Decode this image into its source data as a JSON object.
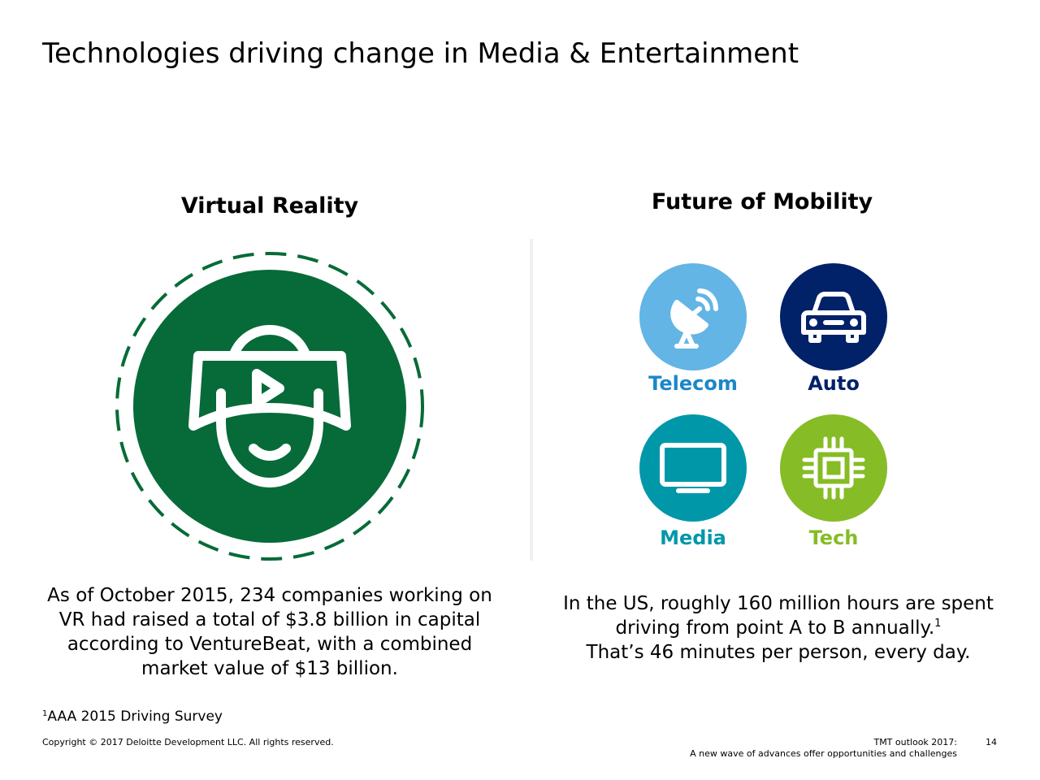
{
  "slide": {
    "title": "Technologies driving change in Media & Entertainment"
  },
  "vr": {
    "heading": "Virtual Reality",
    "icon": "vr-headset-icon",
    "color": "#066B38",
    "body": "As of October 2015, 234 companies working on VR had raised a total of $3.8 billion in capital according to VentureBeat, with a combined market value of $13 billion."
  },
  "mobility": {
    "heading": "Future of Mobility",
    "tiles": [
      {
        "label": "Telecom",
        "icon": "satellite-dish-icon",
        "circle_color": "#62B5E5",
        "label_color": "#1B87C9"
      },
      {
        "label": "Auto",
        "icon": "car-icon",
        "circle_color": "#012169",
        "label_color": "#012169"
      },
      {
        "label": "Media",
        "icon": "television-icon",
        "circle_color": "#0097A9",
        "label_color": "#0097A9"
      },
      {
        "label": "Tech",
        "icon": "microchip-icon",
        "circle_color": "#86BC25",
        "label_color": "#86BC25"
      }
    ],
    "body": "In the US, roughly 160 million hours are spent driving from point A to B annually.",
    "body_sup": "1",
    "body_line2": "That’s 46 minutes per person, every day."
  },
  "footnote": {
    "marker": "1",
    "text": "AAA 2015 Driving Survey"
  },
  "footer": {
    "copyright": "Copyright © 2017 Deloitte Development LLC. All rights reserved.",
    "doc_title_line1": "TMT outlook 2017:",
    "doc_title_line2": "A new wave of advances offer opportunities and challenges",
    "page_number": "14"
  }
}
